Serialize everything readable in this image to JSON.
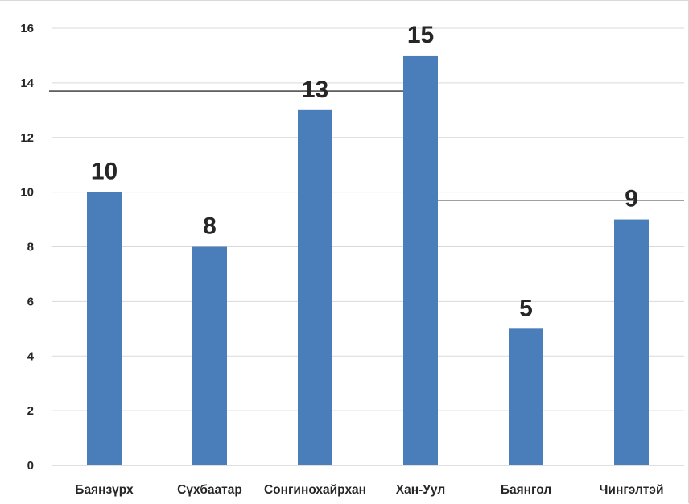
{
  "chart_data": {
    "type": "bar",
    "title": "",
    "xlabel": "",
    "ylabel": "",
    "categories": [
      "Баянзүрх",
      "Сүхбаатар",
      "Сонгинохайрхан",
      "Хан-Уул",
      "Баянгол",
      "Чингэлтэй"
    ],
    "series": [
      {
        "values": [
          10,
          8,
          13,
          15,
          5,
          9
        ],
        "color": "#4a7ebb"
      }
    ],
    "data_labels": [
      "10",
      "8",
      "13",
      "15",
      "5",
      "9"
    ],
    "ylim": [
      0,
      16
    ],
    "yticks": [
      0,
      2,
      4,
      6,
      8,
      10,
      12,
      14,
      16
    ],
    "ytick_labels": [
      "0",
      "2",
      "4",
      "6",
      "8",
      "10",
      "12",
      "14",
      "16"
    ],
    "grid": true,
    "legend": "none",
    "overlay_lines": [
      {
        "y": 13.7,
        "from_category": "Баянзүрх",
        "to_category": "Хан-Уул"
      },
      {
        "y": 9.7,
        "from_category": "Хан-Уул",
        "to_category": "Чингэлтэй"
      }
    ],
    "colors": {
      "bar": "#4a7ebb",
      "grid": "#d9d9d9",
      "axis": "#bfbfbf",
      "overlay": "#000000",
      "text": "#262626"
    }
  }
}
